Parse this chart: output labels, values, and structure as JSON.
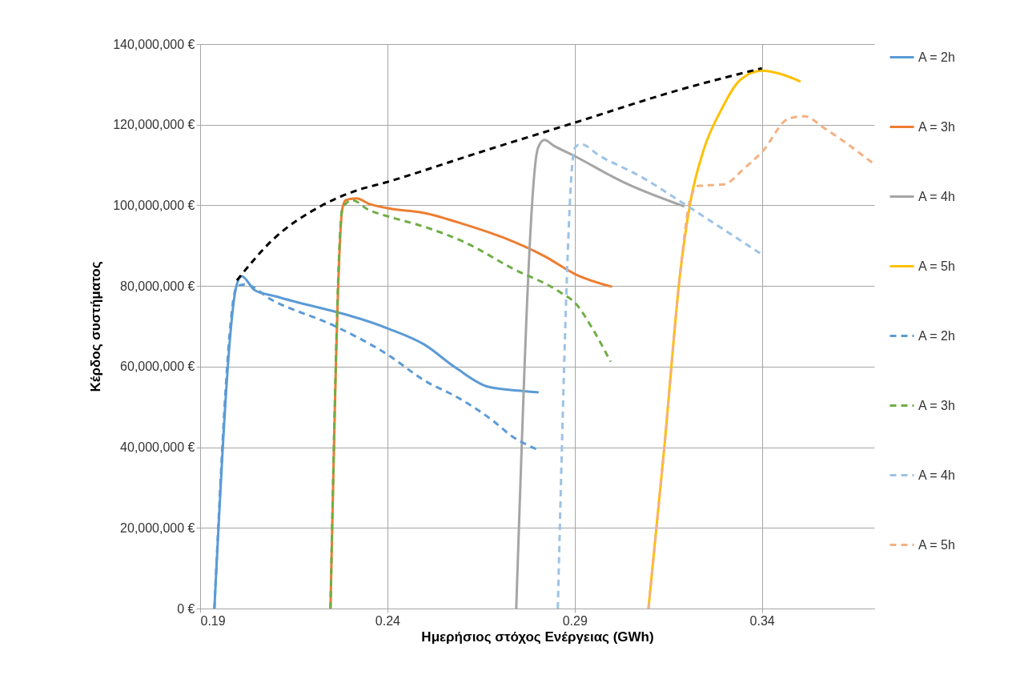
{
  "chart_data": {
    "type": "line",
    "xlabel": "Ημερήσιος στόχος Ενέργειας (GWh)",
    "ylabel": "Κέρδος  συστήματος",
    "xlim": [
      0.19,
      0.37
    ],
    "xticks": [
      0.19,
      0.24,
      0.29,
      0.34
    ],
    "ylim": [
      0,
      140000000
    ],
    "yticks": [
      {
        "value": 0,
        "label": "0 €"
      },
      {
        "value": 20000000,
        "label": "20,000,000 €"
      },
      {
        "value": 40000000,
        "label": "40,000,000 €"
      },
      {
        "value": 60000000,
        "label": "60,000,000 €"
      },
      {
        "value": 80000000,
        "label": "80,000,000 €"
      },
      {
        "value": 100000000,
        "label": "100,000,000 €"
      },
      {
        "value": 120000000,
        "label": "120,000,000 €"
      },
      {
        "value": 140000000,
        "label": "140,000,000 €"
      }
    ],
    "grid": true,
    "legend": "right",
    "series": [
      {
        "name": "A = 2h",
        "color": "#5b9bd5",
        "line_style": "solid",
        "x": [
          0.1938,
          0.1998,
          0.2011,
          0.2045,
          0.2103,
          0.24,
          0.2498,
          0.2584,
          0.2669,
          0.2755,
          0.2804
        ],
        "values": [
          0,
          80400000,
          82400000,
          79000000,
          77400000,
          69500000,
          65500000,
          59600000,
          55000000,
          54000000,
          53600000
        ]
      },
      {
        "name": "A = 3h",
        "color": "#ed7d31",
        "line_style": "solid",
        "x": [
          0.2248,
          0.228,
          0.2289,
          0.2317,
          0.2353,
          0.24,
          0.2498,
          0.2605,
          0.2712,
          0.2819,
          0.2904,
          0.3
        ],
        "values": [
          0,
          99300000,
          101300000,
          101700000,
          100300000,
          99300000,
          98100000,
          95300000,
          91900000,
          87400000,
          82800000,
          79800000
        ]
      },
      {
        "name": "A = 4h",
        "color": "#a5a5a5",
        "line_style": "solid",
        "x": [
          0.2744,
          0.2802,
          0.2819,
          0.2844,
          0.29,
          0.3033,
          0.3193
        ],
        "values": [
          0,
          114200000,
          116200000,
          114800000,
          112200000,
          105600000,
          99700000
        ]
      },
      {
        "name": "A = 5h",
        "color": "#ffc000",
        "line_style": "solid",
        "x": [
          0.3097,
          0.3139,
          0.3182,
          0.3208,
          0.3246,
          0.3288,
          0.3342,
          0.34,
          0.3449,
          0.3503
        ],
        "values": [
          0,
          39700000,
          83400000,
          100300000,
          114200000,
          123100000,
          131100000,
          133400000,
          132600000,
          130700000
        ]
      },
      {
        "name": "A = 2h",
        "color": "#5b9bd5",
        "line_style": "dashed",
        "x": [
          0.1938,
          0.1998,
          0.2018,
          0.2092,
          0.2263,
          0.24,
          0.2498,
          0.2594,
          0.268,
          0.2733,
          0.2804
        ],
        "values": [
          0,
          79800000,
          80400000,
          76500000,
          69900000,
          63000000,
          56600000,
          52000000,
          46700000,
          42700000,
          39300000
        ]
      },
      {
        "name": "A = 3h",
        "color": "#70ad47",
        "line_style": "dashed",
        "x": [
          0.2248,
          0.228,
          0.2306,
          0.2349,
          0.24,
          0.2498,
          0.2605,
          0.2733,
          0.2862,
          0.2904,
          0.2947,
          0.2996
        ],
        "values": [
          0,
          99300000,
          101300000,
          98900000,
          97300000,
          94700000,
          90900000,
          84400000,
          78400000,
          75500000,
          69500000,
          61200000
        ]
      },
      {
        "name": "A = 4h",
        "color": "#9dc3e6",
        "line_style": "dashed",
        "x": [
          0.2855,
          0.29,
          0.2915,
          0.2968,
          0.3075,
          0.3203,
          0.34
        ],
        "values": [
          0,
          114200000,
          115200000,
          112200000,
          107200000,
          99700000,
          87800000
        ]
      },
      {
        "name": "A = 5h",
        "color": "#f4b183",
        "line_style": "dashed",
        "x": [
          0.3097,
          0.3139,
          0.3182,
          0.3208,
          0.3229,
          0.3299,
          0.3353,
          0.34,
          0.3471,
          0.3513,
          0.3567,
          0.37
        ],
        "values": [
          0,
          39700000,
          83400000,
          101300000,
          104800000,
          105200000,
          109200000,
          113200000,
          121500000,
          122100000,
          119100000,
          110200000
        ]
      },
      {
        "color": "#000000",
        "line_style": "dashed",
        "x": [
          0.1998,
          0.2092,
          0.222,
          0.2306,
          0.24,
          0.2648,
          0.29,
          0.3182,
          0.34
        ],
        "values": [
          81400000,
          91300000,
          99700000,
          103300000,
          105800000,
          113200000,
          120500000,
          128700000,
          134000000
        ]
      }
    ]
  }
}
